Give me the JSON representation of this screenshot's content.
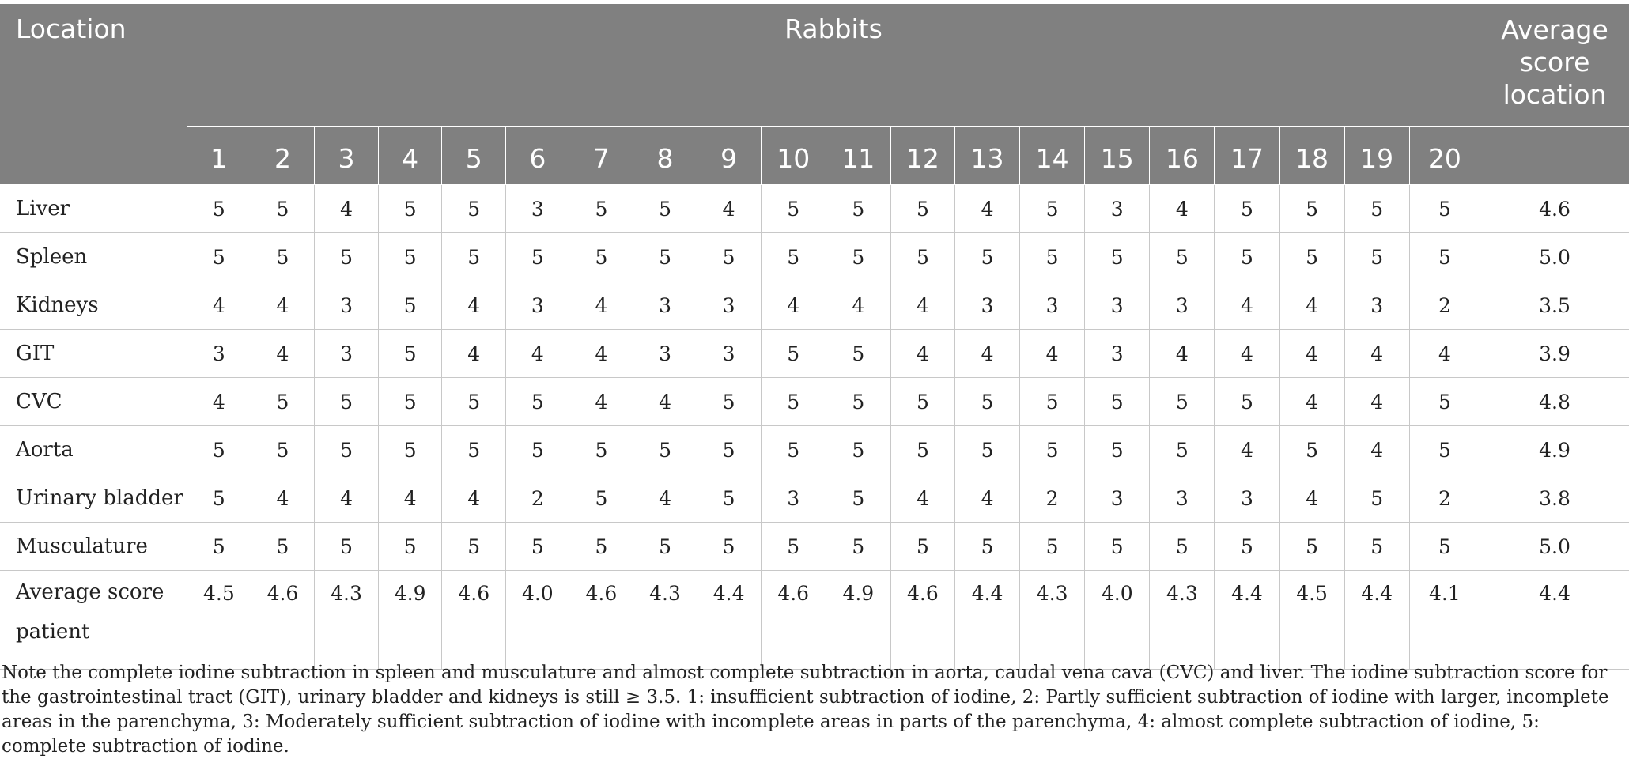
{
  "table": {
    "location_header": "Location",
    "rabbits_header": "Rabbits",
    "average_header": "Average score location",
    "rabbit_numbers": [
      "1",
      "2",
      "3",
      "4",
      "5",
      "6",
      "7",
      "8",
      "9",
      "10",
      "11",
      "12",
      "13",
      "14",
      "15",
      "16",
      "17",
      "18",
      "19",
      "20"
    ],
    "rows": [
      {
        "location": "Liver",
        "scores": [
          "5",
          "5",
          "4",
          "5",
          "5",
          "3",
          "5",
          "5",
          "4",
          "5",
          "5",
          "5",
          "4",
          "5",
          "3",
          "4",
          "5",
          "5",
          "5",
          "5"
        ],
        "average": "4.6"
      },
      {
        "location": "Spleen",
        "scores": [
          "5",
          "5",
          "5",
          "5",
          "5",
          "5",
          "5",
          "5",
          "5",
          "5",
          "5",
          "5",
          "5",
          "5",
          "5",
          "5",
          "5",
          "5",
          "5",
          "5"
        ],
        "average": "5.0"
      },
      {
        "location": "Kidneys",
        "scores": [
          "4",
          "4",
          "3",
          "5",
          "4",
          "3",
          "4",
          "3",
          "3",
          "4",
          "4",
          "4",
          "3",
          "3",
          "3",
          "3",
          "4",
          "4",
          "3",
          "2"
        ],
        "average": "3.5"
      },
      {
        "location": "GIT",
        "scores": [
          "3",
          "4",
          "3",
          "5",
          "4",
          "4",
          "4",
          "3",
          "3",
          "5",
          "5",
          "4",
          "4",
          "4",
          "3",
          "4",
          "4",
          "4",
          "4",
          "4"
        ],
        "average": "3.9"
      },
      {
        "location": "CVC",
        "scores": [
          "4",
          "5",
          "5",
          "5",
          "5",
          "5",
          "4",
          "4",
          "5",
          "5",
          "5",
          "5",
          "5",
          "5",
          "5",
          "5",
          "5",
          "4",
          "4",
          "5"
        ],
        "average": "4.8"
      },
      {
        "location": "Aorta",
        "scores": [
          "5",
          "5",
          "5",
          "5",
          "5",
          "5",
          "5",
          "5",
          "5",
          "5",
          "5",
          "5",
          "5",
          "5",
          "5",
          "5",
          "4",
          "5",
          "4",
          "5"
        ],
        "average": "4.9"
      },
      {
        "location": "Urinary bladder",
        "scores": [
          "5",
          "4",
          "4",
          "4",
          "4",
          "2",
          "5",
          "4",
          "5",
          "3",
          "5",
          "4",
          "4",
          "2",
          "3",
          "3",
          "3",
          "4",
          "5",
          "2"
        ],
        "average": "3.8"
      },
      {
        "location": "Musculature",
        "scores": [
          "5",
          "5",
          "5",
          "5",
          "5",
          "5",
          "5",
          "5",
          "5",
          "5",
          "5",
          "5",
          "5",
          "5",
          "5",
          "5",
          "5",
          "5",
          "5",
          "5"
        ],
        "average": "5.0"
      }
    ],
    "patient_average": {
      "label": "Average score patient",
      "scores": [
        "4.5",
        "4.6",
        "4.3",
        "4.9",
        "4.6",
        "4.0",
        "4.6",
        "4.3",
        "4.4",
        "4.6",
        "4.9",
        "4.6",
        "4.4",
        "4.3",
        "4.0",
        "4.3",
        "4.4",
        "4.5",
        "4.4",
        "4.1"
      ],
      "overall": "4.4"
    }
  },
  "note": "Note the complete iodine subtraction in spleen and musculature and almost complete subtraction in aorta, caudal vena cava (CVC) and liver. The iodine subtraction score for the gastrointestinal tract (GIT), urinary bladder and kidneys is still ≥ 3.5. 1: insufficient subtraction of iodine, 2: Partly sufficient subtraction of iodine with larger, incomplete areas in the parenchyma, 3: Moderately sufficient subtraction of iodine with incomplete areas in parts of the parenchyma, 4: almost complete subtraction of iodine, 5: complete subtraction of iodine."
}
